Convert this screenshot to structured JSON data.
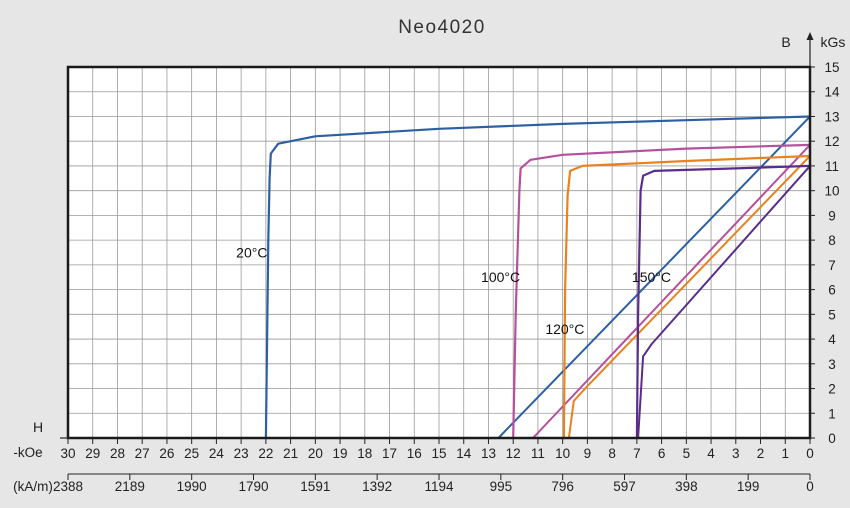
{
  "chart_data": {
    "type": "line",
    "title": "Neo4020",
    "xlabel": "H",
    "x_unit_primary": "-kOe",
    "x_unit_secondary": "(kA/m)",
    "ylabel": "B",
    "y_unit": "kGs",
    "xlim": [
      30,
      0
    ],
    "ylim": [
      0,
      15
    ],
    "grid": true,
    "x_ticks": [
      "30",
      "29",
      "28",
      "27",
      "26",
      "25",
      "24",
      "23",
      "22",
      "21",
      "20",
      "19",
      "18",
      "17",
      "16",
      "15",
      "14",
      "13",
      "12",
      "11",
      "10",
      "9",
      "8",
      "7",
      "6",
      "5",
      "4",
      "3",
      "2",
      "1",
      "0"
    ],
    "x_ticks_secondary": [
      "2388",
      "2189",
      "1990",
      "1790",
      "1591",
      "1392",
      "1194",
      "995",
      "796",
      "597",
      "398",
      "199",
      "0"
    ],
    "x_ticks_secondary_pos": [
      30,
      27.5,
      25,
      22.5,
      20,
      17.5,
      15,
      12.5,
      10,
      7.5,
      5,
      2.5,
      0
    ],
    "y_ticks": [
      "0",
      "1",
      "2",
      "3",
      "4",
      "5",
      "6",
      "7",
      "8",
      "9",
      "10",
      "11",
      "12",
      "13",
      "14",
      "15"
    ],
    "series": [
      {
        "name": "20°C",
        "color": "#2d5fa3",
        "demag": [
          [
            22.0,
            0
          ],
          [
            21.95,
            4
          ],
          [
            21.9,
            8
          ],
          [
            21.85,
            10.5
          ],
          [
            21.8,
            11.5
          ],
          [
            21.5,
            11.9
          ],
          [
            20,
            12.2
          ],
          [
            15,
            12.5
          ],
          [
            10,
            12.7
          ],
          [
            5,
            12.85
          ],
          [
            0,
            13
          ]
        ],
        "load_line": [
          [
            12.6,
            0
          ],
          [
            0,
            13
          ]
        ]
      },
      {
        "name": "100°C",
        "color": "#b5509d",
        "demag": [
          [
            12.0,
            0
          ],
          [
            11.9,
            5
          ],
          [
            11.75,
            10.0
          ],
          [
            11.7,
            10.9
          ],
          [
            11.3,
            11.25
          ],
          [
            10,
            11.45
          ],
          [
            5,
            11.7
          ],
          [
            0,
            11.85
          ]
        ],
        "load_line": [
          [
            11.2,
            0
          ],
          [
            0,
            11.85
          ]
        ]
      },
      {
        "name": "120°C",
        "color": "#e8821e",
        "demag": [
          [
            9.95,
            0
          ],
          [
            9.9,
            6
          ],
          [
            9.8,
            9.8
          ],
          [
            9.7,
            10.8
          ],
          [
            9.2,
            11.0
          ],
          [
            5,
            11.2
          ],
          [
            0,
            11.4
          ]
        ],
        "load_line": [
          [
            9.75,
            0
          ],
          [
            9.55,
            1.5
          ],
          [
            9.0,
            2.1
          ],
          [
            0,
            11.4
          ]
        ]
      },
      {
        "name": "150°C",
        "color": "#5a2d8a",
        "demag": [
          [
            7.0,
            0
          ],
          [
            6.95,
            5
          ],
          [
            6.85,
            10.0
          ],
          [
            6.75,
            10.6
          ],
          [
            6.3,
            10.8
          ],
          [
            3,
            10.9
          ],
          [
            0,
            11.0
          ]
        ],
        "load_line": [
          [
            6.95,
            0
          ],
          [
            6.75,
            3.3
          ],
          [
            6.4,
            3.8
          ],
          [
            0,
            11.0
          ]
        ]
      }
    ],
    "annotations": [
      {
        "text": "20°C",
        "x": 23.2,
        "y": 7.3
      },
      {
        "text": "100°C",
        "x": 13.3,
        "y": 6.3
      },
      {
        "text": "120°C",
        "x": 10.7,
        "y": 4.2
      },
      {
        "text": "150°C",
        "x": 7.2,
        "y": 6.3
      }
    ]
  }
}
